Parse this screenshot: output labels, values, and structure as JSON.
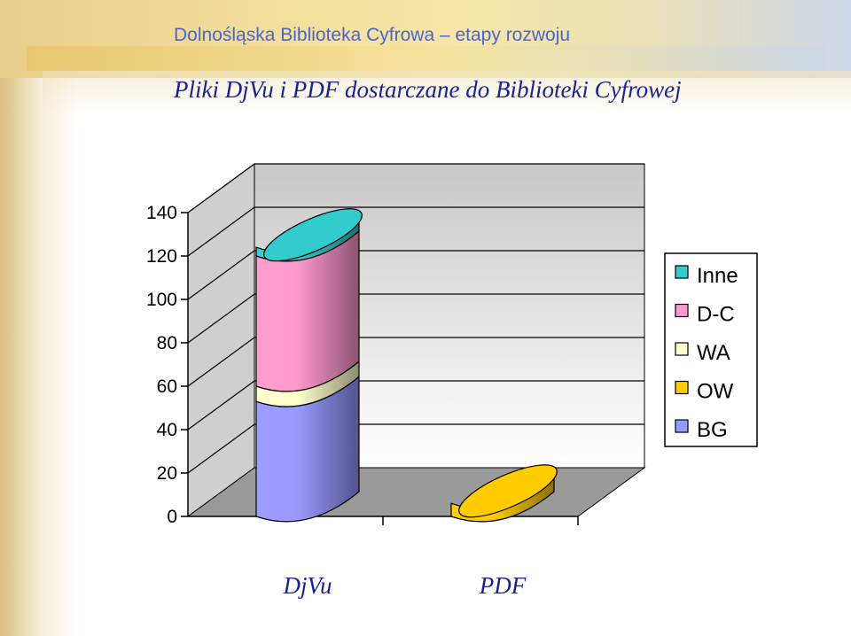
{
  "slide": {
    "title": "Dolnośląska Biblioteka Cyfrowa – etapy rozwoju",
    "subtitle": "Pliki DjVu i PDF dostarczane do Biblioteki Cyfrowej"
  },
  "chart_data": {
    "type": "bar",
    "style": "3d-stacked-cylinder",
    "categories": [
      "DjVu",
      "PDF"
    ],
    "series": [
      {
        "name": "BG",
        "color": "#9999ff",
        "values": [
          53,
          0
        ]
      },
      {
        "name": "OW",
        "color": "#ffcc00",
        "values": [
          0,
          6
        ]
      },
      {
        "name": "WA",
        "color": "#ffffcc",
        "values": [
          7,
          0
        ]
      },
      {
        "name": "D-C",
        "color": "#ff99cc",
        "values": [
          60,
          0
        ]
      },
      {
        "name": "Inne",
        "color": "#33cccc",
        "values": [
          4,
          0
        ]
      }
    ],
    "yticks": [
      0,
      20,
      40,
      60,
      80,
      100,
      120,
      140
    ],
    "ylim": [
      0,
      140
    ],
    "grid": true,
    "legend_position": "right",
    "legend_order": [
      "Inne",
      "D-C",
      "WA",
      "OW",
      "BG"
    ]
  }
}
